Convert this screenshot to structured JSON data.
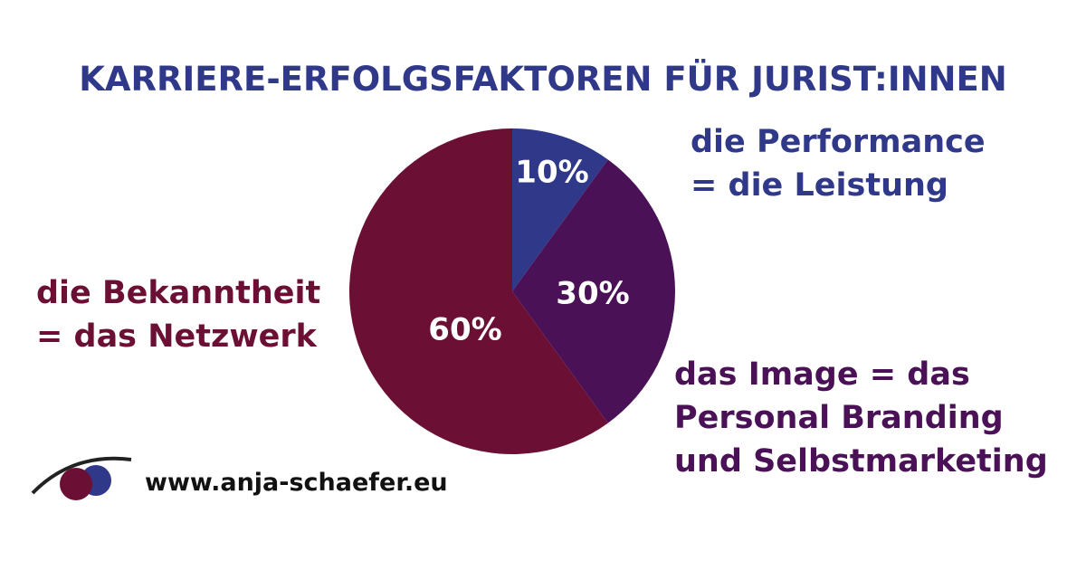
{
  "chart_data": {
    "type": "pie",
    "title": "KARRIERE-ERFOLGSFAKTOREN FÜR JURIST:INNEN",
    "categories": [
      "die Performance\n= die Leistung",
      "das Image = das\nPersonal Branding\nund Selbstmarketing",
      "die Bekanntheit\n= das Netzwerk"
    ],
    "values": [
      10,
      30,
      60
    ],
    "value_labels": [
      "10%",
      "30%",
      "60%"
    ],
    "colors": [
      "#2f3889",
      "#4a1157",
      "#6c0f34"
    ]
  },
  "footer": {
    "website": "www.anja-schaefer.eu"
  }
}
